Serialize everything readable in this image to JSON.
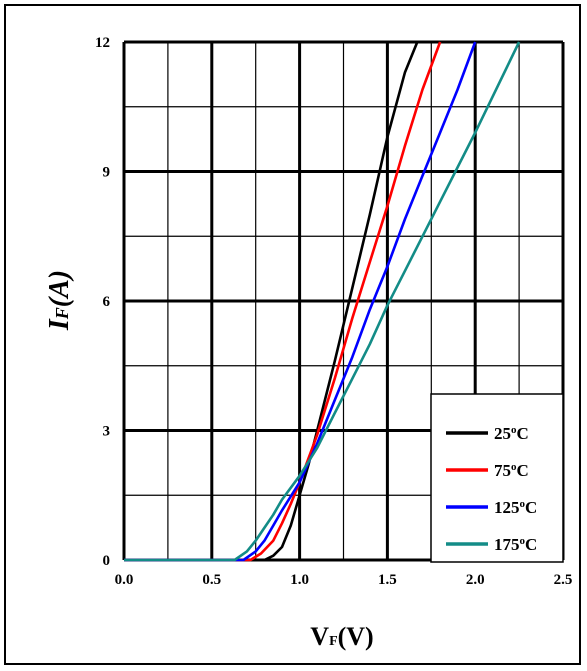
{
  "chart_data": {
    "type": "line",
    "title": "",
    "xlabel": {
      "main": "V",
      "sub": "F",
      "unit": "(V)"
    },
    "ylabel": {
      "main": "I",
      "sub": "F",
      "unit": "(A)"
    },
    "xlim": [
      0,
      2.5
    ],
    "ylim": [
      0,
      12
    ],
    "x_ticks": [
      "0.0",
      "0.5",
      "1.0",
      "1.5",
      "2.0",
      "2.5"
    ],
    "y_ticks": [
      "0",
      "3",
      "6",
      "9",
      "12"
    ],
    "grid": true,
    "legend_position": "bottom-right",
    "series": [
      {
        "name": "25",
        "unit": "oC",
        "color": "#000000",
        "x": [
          0.0,
          0.5,
          0.8,
          0.85,
          0.9,
          0.95,
          1.0,
          1.05,
          1.1,
          1.2,
          1.3,
          1.4,
          1.5,
          1.6,
          1.67
        ],
        "y": [
          0,
          0,
          0,
          0.1,
          0.3,
          0.8,
          1.5,
          2.2,
          3.0,
          4.6,
          6.3,
          8.0,
          9.8,
          11.3,
          12
        ]
      },
      {
        "name": "75",
        "unit": "oC",
        "color": "#ff0000",
        "x": [
          0.0,
          0.5,
          0.72,
          0.78,
          0.85,
          0.9,
          0.95,
          1.0,
          1.1,
          1.2,
          1.3,
          1.4,
          1.5,
          1.6,
          1.7,
          1.8
        ],
        "y": [
          0,
          0,
          0,
          0.15,
          0.45,
          0.85,
          1.3,
          1.8,
          2.9,
          4.2,
          5.6,
          6.9,
          8.2,
          9.6,
          10.9,
          12
        ]
      },
      {
        "name": "125",
        "unit": "oC",
        "color": "#0000ff",
        "x": [
          0.0,
          0.5,
          0.68,
          0.75,
          0.8,
          0.85,
          0.9,
          1.0,
          1.1,
          1.2,
          1.3,
          1.4,
          1.5,
          1.6,
          1.7,
          1.8,
          1.9,
          2.0
        ],
        "y": [
          0,
          0,
          0,
          0.2,
          0.45,
          0.8,
          1.15,
          1.8,
          2.7,
          3.7,
          4.7,
          5.8,
          6.8,
          7.9,
          8.9,
          9.9,
          10.9,
          12
        ]
      },
      {
        "name": "175",
        "unit": "oC",
        "color": "#138c87",
        "x": [
          0.0,
          0.5,
          0.63,
          0.7,
          0.75,
          0.8,
          0.85,
          0.9,
          1.0,
          1.1,
          1.2,
          1.3,
          1.4,
          1.5,
          1.6,
          1.8,
          2.0,
          2.25
        ],
        "y": [
          0,
          0,
          0,
          0.2,
          0.45,
          0.75,
          1.05,
          1.4,
          1.95,
          2.6,
          3.4,
          4.2,
          5.0,
          5.9,
          6.7,
          8.3,
          9.9,
          12
        ]
      }
    ]
  }
}
